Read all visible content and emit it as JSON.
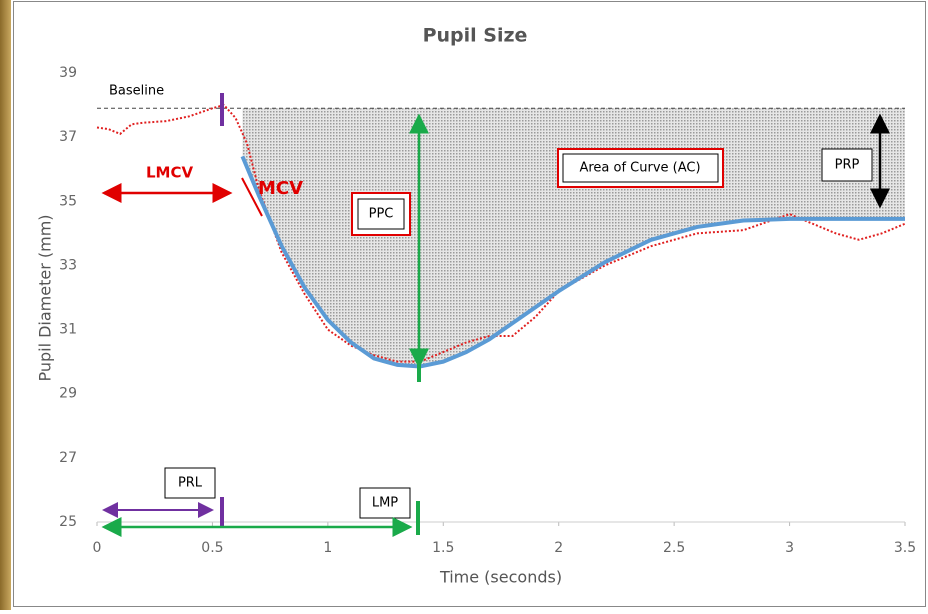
{
  "chart_data": {
    "type": "line",
    "title": "Pupil Size",
    "x_label": "Time (seconds)",
    "y_label": "Pupil Diameter (mm)",
    "xlim": [
      0,
      3.5
    ],
    "xticks": [
      0,
      0.5,
      1,
      1.5,
      2,
      2.5,
      3,
      3.5
    ],
    "ylim": [
      25,
      39
    ],
    "yticks": [
      25,
      27,
      29,
      31,
      33,
      35,
      37,
      39
    ],
    "grid": false,
    "baseline": 37.9,
    "series": [
      {
        "color": "#5b9bd5",
        "x": [
          0.63,
          0.7,
          0.8,
          0.9,
          1.0,
          1.1,
          1.2,
          1.3,
          1.4,
          1.5,
          1.6,
          1.7,
          1.8,
          1.9,
          2.0,
          2.2,
          2.4,
          2.6,
          2.8,
          3.0,
          3.2,
          3.5
        ],
        "values": [
          36.4,
          35.2,
          33.6,
          32.3,
          31.3,
          30.6,
          30.1,
          29.9,
          29.85,
          30.0,
          30.3,
          30.7,
          31.2,
          31.7,
          32.2,
          33.1,
          33.8,
          34.2,
          34.4,
          34.45,
          34.45,
          34.45
        ]
      },
      {
        "color": "#e02020",
        "x": [
          0,
          0.05,
          0.1,
          0.15,
          0.2,
          0.3,
          0.4,
          0.5,
          0.55,
          0.6,
          0.65,
          0.7,
          0.8,
          0.9,
          1.0,
          1.1,
          1.2,
          1.3,
          1.4,
          1.5,
          1.6,
          1.7,
          1.8,
          1.9,
          2.0,
          2.2,
          2.4,
          2.6,
          2.8,
          3.0,
          3.1,
          3.2,
          3.3,
          3.4,
          3.5
        ],
        "values": [
          37.3,
          37.25,
          37.1,
          37.4,
          37.45,
          37.5,
          37.65,
          37.9,
          38.0,
          37.6,
          36.8,
          35.4,
          33.4,
          32.1,
          31.0,
          30.5,
          30.2,
          30.0,
          30.0,
          30.3,
          30.6,
          30.8,
          30.8,
          31.4,
          32.2,
          33.0,
          33.6,
          34.0,
          34.1,
          34.6,
          34.3,
          34.0,
          33.8,
          34.0,
          34.3
        ]
      }
    ],
    "annotations": {
      "baseline": "Baseline",
      "lmcv": "LMCV",
      "mcv": "MCV",
      "ppc": "PPC",
      "ac": "Area of Curve (AC)",
      "prp": "PRP",
      "prl": "PRL",
      "lmp": "LMP"
    }
  }
}
